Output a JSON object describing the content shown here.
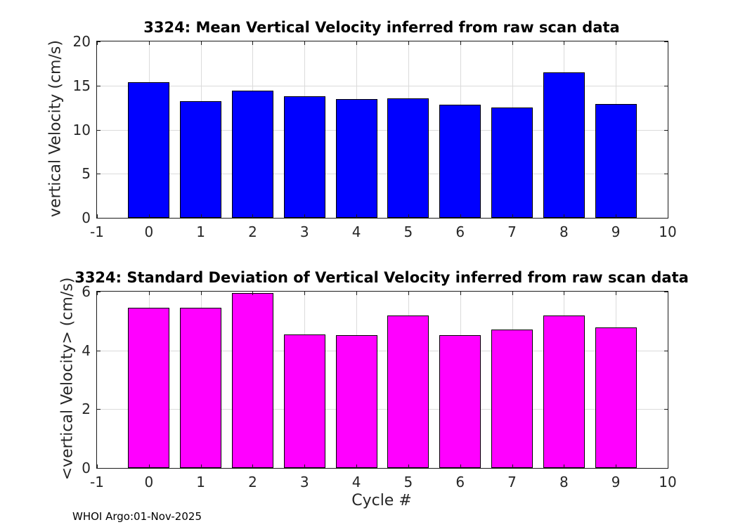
{
  "colors": {
    "grid": "#dbdbdb",
    "axis": "#262626",
    "tick": "#1a1a1a",
    "background": "#ffffff"
  },
  "footer": {
    "credit": "WHOI Argo:01-Nov-2025"
  },
  "chart_data": [
    {
      "type": "bar",
      "title": "3324: Mean Vertical Velocity inferred from raw scan data",
      "ylabel": "vertical Velocity (cm/s)",
      "xlabel": "",
      "categories": [
        0,
        1,
        2,
        3,
        4,
        5,
        6,
        7,
        8,
        9
      ],
      "values": [
        15.38,
        13.22,
        14.45,
        13.78,
        13.47,
        13.55,
        12.8,
        12.5,
        16.5,
        12.9
      ],
      "bar_color": "#0000ff",
      "bar_edge_color": "#000000",
      "bar_width": 0.8,
      "xlim": [
        -1,
        10
      ],
      "ylim": [
        0,
        20
      ],
      "xticks": [
        -1,
        0,
        1,
        2,
        3,
        4,
        5,
        6,
        7,
        8,
        9,
        10
      ],
      "yticks": [
        0,
        5,
        10,
        15,
        20
      ],
      "grid": true,
      "legend": null
    },
    {
      "type": "bar",
      "title": "3324: Standard Deviation of Vertical Velocity inferred from raw scan data",
      "ylabel": "<vertical Velocity> (cm/s)",
      "xlabel": "Cycle #",
      "categories": [
        0,
        1,
        2,
        3,
        4,
        5,
        6,
        7,
        8,
        9
      ],
      "values": [
        5.44,
        5.44,
        5.95,
        4.55,
        4.52,
        5.18,
        4.52,
        4.72,
        5.18,
        4.79
      ],
      "bar_color": "#ff00ff",
      "bar_edge_color": "#000000",
      "bar_width": 0.8,
      "xlim": [
        -1,
        10
      ],
      "ylim": [
        0,
        6
      ],
      "xticks": [
        -1,
        0,
        1,
        2,
        3,
        4,
        5,
        6,
        7,
        8,
        9,
        10
      ],
      "yticks": [
        0,
        2,
        4,
        6
      ],
      "grid": true,
      "legend": null
    }
  ]
}
